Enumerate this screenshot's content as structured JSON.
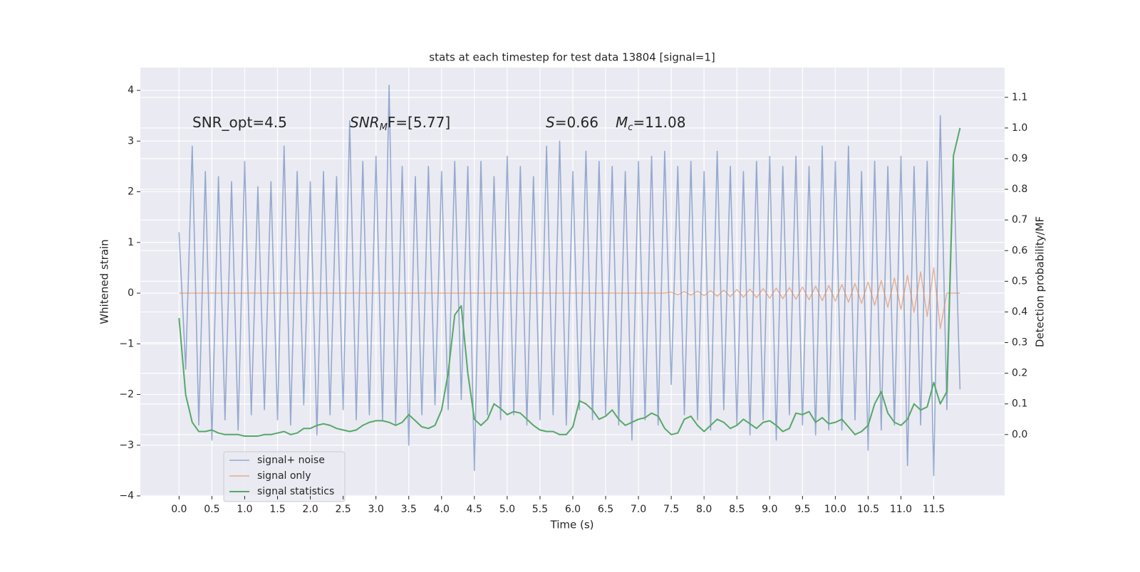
{
  "chart_data": {
    "type": "line",
    "title": "stats at each timestep for test data 13804 [signal=1]",
    "xlabel": "Time (s)",
    "ylabel": "Whitened strain",
    "y2label": "Detection probability/MF",
    "annotations": [
      [
        "SNR_opt=4.5"
      ],
      [
        "SNR",
        "M",
        "F=[5.77]"
      ],
      [
        "S",
        "=0.66",
        "M",
        "c",
        "=11.08"
      ]
    ],
    "grid": true,
    "legend": "lower left",
    "x": [
      0.0,
      0.1,
      0.2,
      0.3,
      0.4,
      0.5,
      0.6,
      0.7,
      0.8,
      0.9,
      1.0,
      1.1,
      1.2,
      1.3,
      1.4,
      1.5,
      1.6,
      1.7,
      1.8,
      1.9,
      2.0,
      2.1,
      2.2,
      2.3,
      2.4,
      2.5,
      2.6,
      2.7,
      2.8,
      2.9,
      3.0,
      3.1,
      3.2,
      3.3,
      3.4,
      3.5,
      3.6,
      3.7,
      3.8,
      3.9,
      4.0,
      4.1,
      4.2,
      4.3,
      4.4,
      4.5,
      4.6,
      4.7,
      4.8,
      4.9,
      5.0,
      5.1,
      5.2,
      5.3,
      5.4,
      5.5,
      5.6,
      5.7,
      5.8,
      5.9,
      6.0,
      6.1,
      6.2,
      6.3,
      6.4,
      6.5,
      6.6,
      6.7,
      6.8,
      6.9,
      7.0,
      7.1,
      7.2,
      7.3,
      7.4,
      7.5,
      7.6,
      7.7,
      7.8,
      7.9,
      8.0,
      8.1,
      8.2,
      8.3,
      8.4,
      8.5,
      8.6,
      8.7,
      8.8,
      8.9,
      9.0,
      9.1,
      9.2,
      9.3,
      9.4,
      9.5,
      9.6,
      9.7,
      9.8,
      9.9,
      10.0,
      10.1,
      10.2,
      10.3,
      10.4,
      10.5,
      10.6,
      10.7,
      10.8,
      10.9,
      11.0,
      11.1,
      11.2,
      11.3,
      11.4,
      11.5,
      11.6,
      11.7,
      11.8,
      11.9
    ],
    "series": [
      {
        "name": "signal+ noise",
        "color": "#4c72b0",
        "values": [
          1.2,
          -1.5,
          2.9,
          -2.6,
          2.4,
          -2.9,
          2.3,
          -2.5,
          2.2,
          -2.7,
          2.6,
          -2.4,
          2.1,
          -2.3,
          2.2,
          -2.5,
          2.9,
          -2.6,
          2.4,
          -2.2,
          2.2,
          -2.8,
          2.4,
          -2.4,
          2.3,
          -2.3,
          3.4,
          -2.5,
          2.6,
          -2.4,
          2.7,
          -2.5,
          4.1,
          -2.6,
          2.5,
          -3.0,
          2.3,
          -2.4,
          2.5,
          -2.2,
          2.4,
          -2.3,
          2.6,
          -2.1,
          2.5,
          -3.5,
          2.6,
          -2.4,
          2.3,
          -2.5,
          2.7,
          -2.4,
          2.5,
          -2.6,
          2.3,
          -2.5,
          2.9,
          -2.4,
          3.0,
          -2.6,
          2.4,
          -2.3,
          2.8,
          -2.5,
          2.6,
          -2.4,
          2.5,
          -2.6,
          2.4,
          -2.9,
          2.6,
          -2.5,
          2.7,
          -2.6,
          2.8,
          -1.8,
          2.5,
          -2.4,
          2.6,
          -2.5,
          2.4,
          -2.7,
          2.8,
          -2.3,
          2.5,
          -2.6,
          2.4,
          -2.8,
          2.6,
          -2.5,
          2.7,
          -2.9,
          2.5,
          -2.4,
          2.7,
          -2.6,
          2.5,
          -2.8,
          2.9,
          -2.7,
          2.6,
          -2.7,
          2.9,
          -2.5,
          2.4,
          -3.1,
          2.6,
          -2.7,
          2.5,
          -2.6,
          2.7,
          -3.4,
          2.5,
          -2.6,
          2.6,
          -3.6,
          3.5,
          -2.3,
          2.6,
          -1.9
        ]
      },
      {
        "name": "signal only",
        "color": "#dd8452",
        "values": [
          0,
          0,
          0,
          0,
          0,
          0,
          0,
          0,
          0,
          0,
          0,
          0,
          0,
          0,
          0,
          0,
          0,
          0,
          0,
          0,
          0,
          0,
          0,
          0,
          0,
          0,
          0,
          0,
          0,
          0,
          0,
          0,
          0,
          0,
          0,
          0,
          0,
          0,
          0,
          0,
          0,
          0,
          0,
          0,
          0,
          0,
          0,
          0,
          0,
          0,
          0,
          0,
          0,
          0,
          0,
          0,
          0,
          0,
          0,
          0,
          0,
          0,
          0,
          0,
          0,
          0,
          0,
          0,
          0,
          0,
          0,
          0,
          0,
          0,
          0,
          0.02,
          -0.03,
          0.03,
          -0.04,
          0.04,
          -0.05,
          0.05,
          -0.06,
          0.06,
          -0.07,
          0.07,
          -0.08,
          0.08,
          -0.09,
          0.09,
          -0.1,
          0.1,
          -0.11,
          0.11,
          -0.12,
          0.12,
          -0.13,
          0.14,
          -0.15,
          0.15,
          -0.16,
          0.17,
          -0.18,
          0.19,
          -0.2,
          0.22,
          -0.24,
          0.25,
          -0.28,
          0.3,
          -0.32,
          0.35,
          -0.38,
          0.42,
          -0.46,
          0.5,
          -0.7,
          0,
          0,
          0
        ]
      },
      {
        "name": "signal statistics",
        "color": "#55a868",
        "axis": "y2",
        "values": [
          0.38,
          0.13,
          0.04,
          0.01,
          0.01,
          0.015,
          0.005,
          0.0,
          0.0,
          0.0,
          -0.005,
          -0.005,
          -0.005,
          0.0,
          0.0,
          0.005,
          0.01,
          0.0,
          0.005,
          0.02,
          0.02,
          0.03,
          0.035,
          0.03,
          0.02,
          0.015,
          0.01,
          0.015,
          0.03,
          0.04,
          0.045,
          0.045,
          0.04,
          0.03,
          0.04,
          0.065,
          0.045,
          0.025,
          0.02,
          0.03,
          0.08,
          0.2,
          0.39,
          0.42,
          0.2,
          0.05,
          0.03,
          0.05,
          0.1,
          0.085,
          0.065,
          0.075,
          0.07,
          0.05,
          0.03,
          0.015,
          0.01,
          0.01,
          0.0,
          0.0,
          0.025,
          0.11,
          0.1,
          0.08,
          0.05,
          0.06,
          0.08,
          0.05,
          0.03,
          0.04,
          0.05,
          0.055,
          0.07,
          0.06,
          0.02,
          0.0,
          0.005,
          0.05,
          0.06,
          0.03,
          0.01,
          0.03,
          0.05,
          0.04,
          0.02,
          0.03,
          0.05,
          0.035,
          0.02,
          0.04,
          0.045,
          0.03,
          0.01,
          0.02,
          0.07,
          0.065,
          0.075,
          0.04,
          0.055,
          0.035,
          0.04,
          0.05,
          0.025,
          0.0,
          0.01,
          0.03,
          0.1,
          0.14,
          0.07,
          0.04,
          0.03,
          0.05,
          0.1,
          0.08,
          0.09,
          0.17,
          0.1,
          0.14,
          0.91,
          1.0
        ]
      }
    ],
    "xlim": [
      -0.59,
      12.58
    ],
    "xticks": [
      {
        "value": 0,
        "label": "0.0"
      },
      0.5,
      {
        "value": 1,
        "label": "1.0"
      },
      1.5,
      {
        "value": 2,
        "label": "2.0"
      },
      2.5,
      {
        "value": 3,
        "label": "3.0"
      },
      3.5,
      {
        "value": 4,
        "label": "4.0"
      },
      4.5,
      {
        "value": 5,
        "label": "5.0"
      },
      5.5,
      {
        "value": 6,
        "label": "6.0"
      },
      6.5,
      {
        "value": 7,
        "label": "7.0"
      },
      7.5,
      {
        "value": 8,
        "label": "8.0"
      },
      8.5,
      {
        "value": 9,
        "label": "9.0"
      },
      9.5,
      {
        "value": 10,
        "label": "10.0"
      },
      10.5,
      {
        "value": 11,
        "label": "11.0"
      },
      11.5
    ],
    "ylim": [
      -4,
      4.45
    ],
    "yticks": [
      {
        "value": -4,
        "label": "−4"
      },
      {
        "value": -3,
        "label": "−3"
      },
      {
        "value": -2,
        "label": "−2"
      },
      {
        "value": -1,
        "label": "−1"
      },
      0,
      1,
      2,
      3,
      4
    ],
    "y2lim": [
      -0.2,
      1.197
    ],
    "y2ticks": [
      {
        "value": 0,
        "label": "0.0"
      },
      0.1,
      0.2,
      0.3,
      0.4,
      0.5,
      0.6,
      0.7,
      0.8,
      0.9,
      {
        "value": 1,
        "label": "1.0"
      },
      1.1
    ]
  }
}
